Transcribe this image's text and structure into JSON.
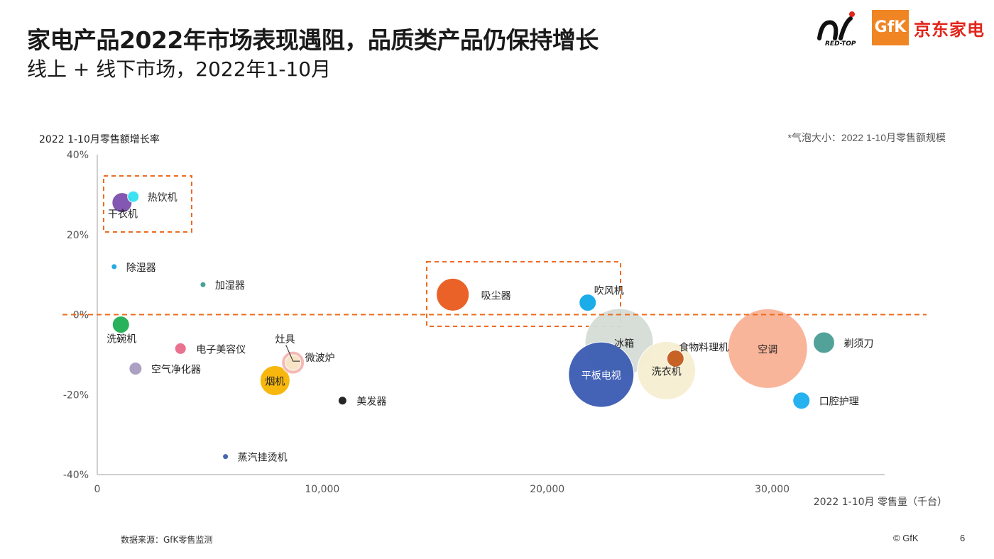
{
  "header": {
    "title": "家电产品2022年市场表现遇阻，品质类产品仍保持增长",
    "subtitle": "线上 + 线下市场，2022年1-10月",
    "logos": {
      "redtop_text": "RED-TOP",
      "gfk_text": "GfK",
      "jd_text": "京东家电"
    }
  },
  "notes": {
    "bubble_size": "*气泡大小：2022 1-10月零售额规模",
    "source": "数据来源：GfK零售监测",
    "copyright": "© GfK",
    "page": "6"
  },
  "colors": {
    "highlight": "#ed6c1f",
    "axis": "#bfbfbf",
    "text": "#333333"
  },
  "chart_data": {
    "type": "scatter",
    "xlabel": "2022 1-10月 零售量（千台）",
    "ylabel": "2022 1-10月零售额增长率",
    "xlim": [
      0,
      35000
    ],
    "ylim": [
      -40,
      40
    ],
    "x_ticks": [
      "0",
      "10,000",
      "20,000",
      "30,000"
    ],
    "y_ticks": [
      "40%",
      "20%",
      "0%",
      "-20%",
      "-40%"
    ],
    "reference_line_y": 0,
    "points": [
      {
        "name": "干衣机",
        "x": 1100,
        "y": 28,
        "size": 14,
        "color": "#7b4fae"
      },
      {
        "name": "热饮机",
        "x": 1600,
        "y": 29.5,
        "size": 8,
        "color": "#33e0f0"
      },
      {
        "name": "除湿器",
        "x": 750,
        "y": 12,
        "size": 4,
        "color": "#1aa5e0"
      },
      {
        "name": "加湿器",
        "x": 4700,
        "y": 7.5,
        "size": 4,
        "color": "#3a9e8f"
      },
      {
        "name": "洗碗机",
        "x": 1050,
        "y": -2.5,
        "size": 12,
        "color": "#1fad52"
      },
      {
        "name": "电子美容仪",
        "x": 3700,
        "y": -8.5,
        "size": 8,
        "color": "#e86a8b"
      },
      {
        "name": "空气净化器",
        "x": 1700,
        "y": -13.5,
        "size": 9,
        "color": "#a89bc0"
      },
      {
        "name": "灶具",
        "x": 8700,
        "y": -12,
        "size": 16,
        "color": "#f4b5b0"
      },
      {
        "name": "微波炉",
        "x": 8700,
        "y": -12,
        "size": 11,
        "color": "#f7e6c8"
      },
      {
        "name": "烟机",
        "x": 7900,
        "y": -16.5,
        "size": 21,
        "color": "#f7b300"
      },
      {
        "name": "美发器",
        "x": 10900,
        "y": -21.5,
        "size": 6,
        "color": "#1a1a1a"
      },
      {
        "name": "蒸汽挂烫机",
        "x": 5700,
        "y": -35.5,
        "size": 4,
        "color": "#3a5fa8"
      },
      {
        "name": "吸尘器",
        "x": 15800,
        "y": 5,
        "size": 23,
        "color": "#e95a1b"
      },
      {
        "name": "吹风机",
        "x": 21800,
        "y": 3,
        "size": 12,
        "color": "#0fa8e8"
      },
      {
        "name": "冰箱",
        "x": 23200,
        "y": -7,
        "size": 48,
        "color": "#d5dcd6"
      },
      {
        "name": "平板电视",
        "x": 22400,
        "y": -15,
        "size": 46,
        "color": "#3a5bb2"
      },
      {
        "name": "洗衣机",
        "x": 25300,
        "y": -14,
        "size": 41,
        "color": "#f7eed2"
      },
      {
        "name": "食物料理机",
        "x": 25700,
        "y": -11,
        "size": 12,
        "color": "#c45a1e"
      },
      {
        "name": "空调",
        "x": 29800,
        "y": -8.5,
        "size": 56,
        "color": "#f9b195"
      },
      {
        "name": "剃须刀",
        "x": 32300,
        "y": -7,
        "size": 15,
        "color": "#4a9d95"
      },
      {
        "name": "口腔护理",
        "x": 31300,
        "y": -21.5,
        "size": 12,
        "color": "#19aeee"
      }
    ]
  }
}
